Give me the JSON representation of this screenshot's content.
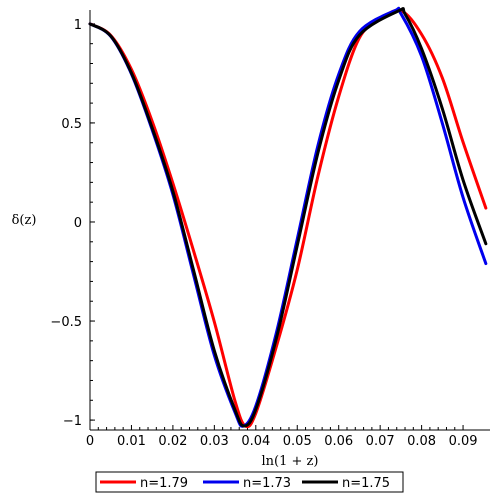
{
  "chart_data": {
    "type": "line",
    "title": "",
    "xlabel": "ln(1 + z)",
    "ylabel": "δ(z)",
    "xlim": [
      0,
      0.0965
    ],
    "ylim": [
      -1.05,
      1.07
    ],
    "x_ticks": [
      0,
      0.01,
      0.02,
      0.03,
      0.04,
      0.05,
      0.06,
      0.07,
      0.08,
      0.09
    ],
    "x_tick_labels": [
      "0",
      "0.01",
      "0.02",
      "0.03",
      "0.04",
      "0.05",
      "0.06",
      "0.07",
      "0.08",
      "0.09"
    ],
    "y_ticks": [
      1,
      0.5,
      0,
      -0.5,
      -1
    ],
    "y_tick_labels": [
      "1",
      "0.5",
      "0",
      "−0.5",
      "−1"
    ],
    "grid": false,
    "legend_position": "bottom",
    "series": [
      {
        "name": "n=1.79",
        "color": "#ff0000",
        "points": [
          [
            0,
            1.0
          ],
          [
            0.005,
            0.942
          ],
          [
            0.01,
            0.77
          ],
          [
            0.015,
            0.508
          ],
          [
            0.02,
            0.195
          ],
          [
            0.025,
            -0.147
          ],
          [
            0.03,
            -0.505
          ],
          [
            0.035,
            -0.905
          ],
          [
            0.0375,
            -1.03
          ],
          [
            0.04,
            -0.965
          ],
          [
            0.045,
            -0.626
          ],
          [
            0.05,
            -0.241
          ],
          [
            0.055,
            0.232
          ],
          [
            0.06,
            0.633
          ],
          [
            0.065,
            0.93
          ],
          [
            0.07,
            1.022
          ],
          [
            0.075,
            1.066
          ],
          [
            0.08,
            0.947
          ],
          [
            0.085,
            0.727
          ],
          [
            0.09,
            0.403
          ],
          [
            0.0955,
            0.07
          ]
        ]
      },
      {
        "name": "n=1.73",
        "color": "#0000ee",
        "points": [
          [
            0,
            1.0
          ],
          [
            0.005,
            0.937
          ],
          [
            0.01,
            0.747
          ],
          [
            0.015,
            0.465
          ],
          [
            0.02,
            0.139
          ],
          [
            0.025,
            -0.268
          ],
          [
            0.03,
            -0.673
          ],
          [
            0.035,
            -0.962
          ],
          [
            0.037,
            -1.03
          ],
          [
            0.04,
            -0.929
          ],
          [
            0.045,
            -0.556
          ],
          [
            0.05,
            -0.086
          ],
          [
            0.055,
            0.387
          ],
          [
            0.06,
            0.745
          ],
          [
            0.065,
            0.961
          ],
          [
            0.0735,
            1.066
          ],
          [
            0.075,
            1.052
          ],
          [
            0.08,
            0.837
          ],
          [
            0.085,
            0.498
          ],
          [
            0.09,
            0.124
          ],
          [
            0.0955,
            -0.21
          ]
        ]
      },
      {
        "name": "n=1.75",
        "color": "#000000",
        "points": [
          [
            0,
            1.0
          ],
          [
            0.005,
            0.939
          ],
          [
            0.01,
            0.752
          ],
          [
            0.015,
            0.475
          ],
          [
            0.02,
            0.155
          ],
          [
            0.025,
            -0.245
          ],
          [
            0.03,
            -0.65
          ],
          [
            0.035,
            -0.95
          ],
          [
            0.0372,
            -1.03
          ],
          [
            0.04,
            -0.946
          ],
          [
            0.045,
            -0.584
          ],
          [
            0.05,
            -0.119
          ],
          [
            0.055,
            0.35
          ],
          [
            0.06,
            0.715
          ],
          [
            0.065,
            0.943
          ],
          [
            0.0745,
            1.066
          ],
          [
            0.076,
            1.05
          ],
          [
            0.08,
            0.874
          ],
          [
            0.085,
            0.572
          ],
          [
            0.09,
            0.212
          ],
          [
            0.0955,
            -0.11
          ]
        ]
      }
    ]
  }
}
